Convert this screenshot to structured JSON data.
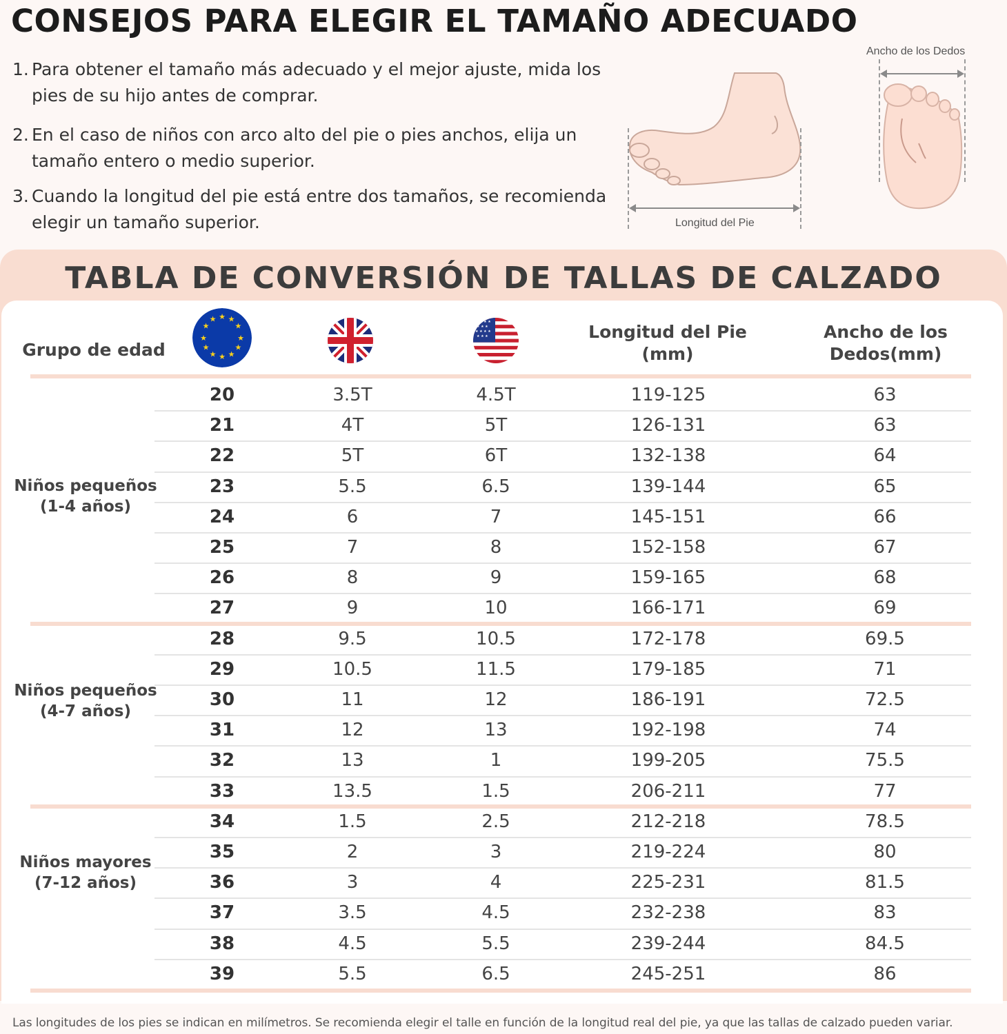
{
  "title": "CONSEJOS PARA ELEGIR EL TAMAÑO ADECUADO",
  "tips": [
    {
      "num": "1.",
      "text": "Para obtener el tamaño más adecuado y el mejor ajuste, mida los pies de su hijo antes de comprar."
    },
    {
      "num": "2.",
      "text": "En el caso de niños con arco alto del pie o pies anchos, elija un tamaño entero o medio superior."
    },
    {
      "num": "3.",
      "text": "Cuando la longitud del pie está entre dos tamaños, se recomienda elegir un tamaño superior."
    }
  ],
  "figures": {
    "length_label": "Longitud del Pie",
    "width_label": "Ancho de los Dedos"
  },
  "table": {
    "title": "TABLA DE CONVERSIÓN DE TALLAS DE CALZADO",
    "headers": {
      "group": "Grupo de edad",
      "eu_flag": "eu-flag-icon",
      "uk_flag": "uk-flag-icon",
      "us_flag": "us-flag-icon",
      "length_line1": "Longitud del Pie",
      "length_line2": "(mm)",
      "width_line1": "Ancho de los",
      "width_line2": "Dedos(mm)"
    },
    "groups": [
      {
        "line1": "Niños pequeños",
        "line2": "(1-4 años)"
      },
      {
        "line1": "Niños pequeños",
        "line2": "(4-7 años)"
      },
      {
        "line1": "Niños mayores",
        "line2": "(7-12 años)"
      }
    ],
    "rows": [
      {
        "eu": "20",
        "uk": "3.5T",
        "us": "4.5T",
        "length": "119-125",
        "width": "63"
      },
      {
        "eu": "21",
        "uk": "4T",
        "us": "5T",
        "length": "126-131",
        "width": "63"
      },
      {
        "eu": "22",
        "uk": "5T",
        "us": "6T",
        "length": "132-138",
        "width": "64"
      },
      {
        "eu": "23",
        "uk": "5.5",
        "us": "6.5",
        "length": "139-144",
        "width": "65"
      },
      {
        "eu": "24",
        "uk": "6",
        "us": "7",
        "length": "145-151",
        "width": "66"
      },
      {
        "eu": "25",
        "uk": "7",
        "us": "8",
        "length": "152-158",
        "width": "67"
      },
      {
        "eu": "26",
        "uk": "8",
        "us": "9",
        "length": "159-165",
        "width": "68"
      },
      {
        "eu": "27",
        "uk": "9",
        "us": "10",
        "length": "166-171",
        "width": "69"
      },
      {
        "eu": "28",
        "uk": "9.5",
        "us": "10.5",
        "length": "172-178",
        "width": "69.5"
      },
      {
        "eu": "29",
        "uk": "10.5",
        "us": "11.5",
        "length": "179-185",
        "width": "71"
      },
      {
        "eu": "30",
        "uk": "11",
        "us": "12",
        "length": "186-191",
        "width": "72.5"
      },
      {
        "eu": "31",
        "uk": "12",
        "us": "13",
        "length": "192-198",
        "width": "74"
      },
      {
        "eu": "32",
        "uk": "13",
        "us": "1",
        "length": "199-205",
        "width": "75.5"
      },
      {
        "eu": "33",
        "uk": "13.5",
        "us": "1.5",
        "length": "206-211",
        "width": "77"
      },
      {
        "eu": "34",
        "uk": "1.5",
        "us": "2.5",
        "length": "212-218",
        "width": "78.5"
      },
      {
        "eu": "35",
        "uk": "2",
        "us": "3",
        "length": "219-224",
        "width": "80"
      },
      {
        "eu": "36",
        "uk": "3",
        "us": "4",
        "length": "225-231",
        "width": "81.5"
      },
      {
        "eu": "37",
        "uk": "3.5",
        "us": "4.5",
        "length": "232-238",
        "width": "83"
      },
      {
        "eu": "38",
        "uk": "4.5",
        "us": "5.5",
        "length": "239-244",
        "width": "84.5"
      },
      {
        "eu": "39",
        "uk": "5.5",
        "us": "6.5",
        "length": "245-251",
        "width": "86"
      }
    ]
  },
  "footnote": "Las longitudes de los pies se indican en milímetros. Se recomienda elegir el talle en función de la longitud real del pie, ya que las tallas de calzado pueden variar.",
  "colors": {
    "accent_peach": "#f9ddd1",
    "skin": "#fbe1d6",
    "eu_blue": "#0b3aa8",
    "eu_star": "#ffd21a"
  }
}
